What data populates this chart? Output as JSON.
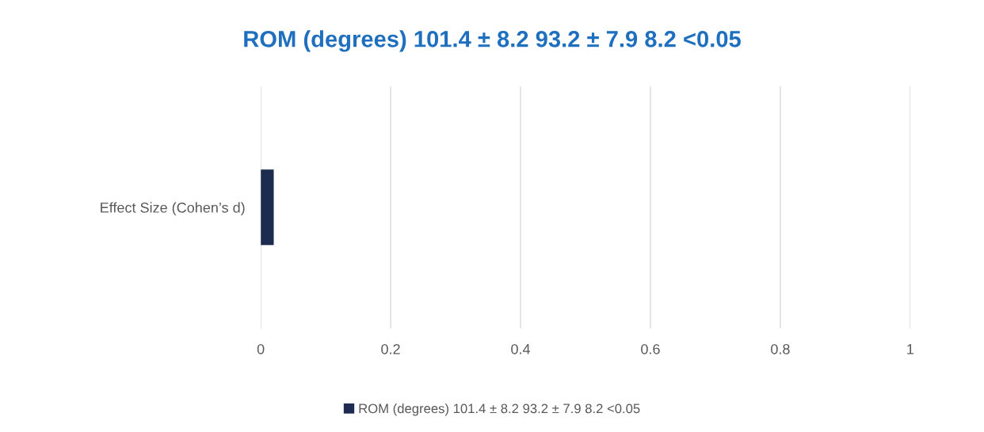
{
  "chart_data": {
    "type": "bar",
    "orientation": "horizontal",
    "title": "ROM (degrees) 101.4 ± 8.2 93.2 ± 7.9 8.2 <0.05",
    "categories": [
      "Effect Size (Cohen’s d)"
    ],
    "series": [
      {
        "name": "ROM (degrees) 101.4 ± 8.2 93.2 ± 7.9 8.2 <0.05",
        "color": "#1c2b4f",
        "values": [
          0.02
        ]
      }
    ],
    "xlim": [
      0,
      1
    ],
    "xticks": [
      0,
      0.2,
      0.4,
      0.6,
      0.8,
      1
    ],
    "grid": "x",
    "legend": "bottom"
  }
}
